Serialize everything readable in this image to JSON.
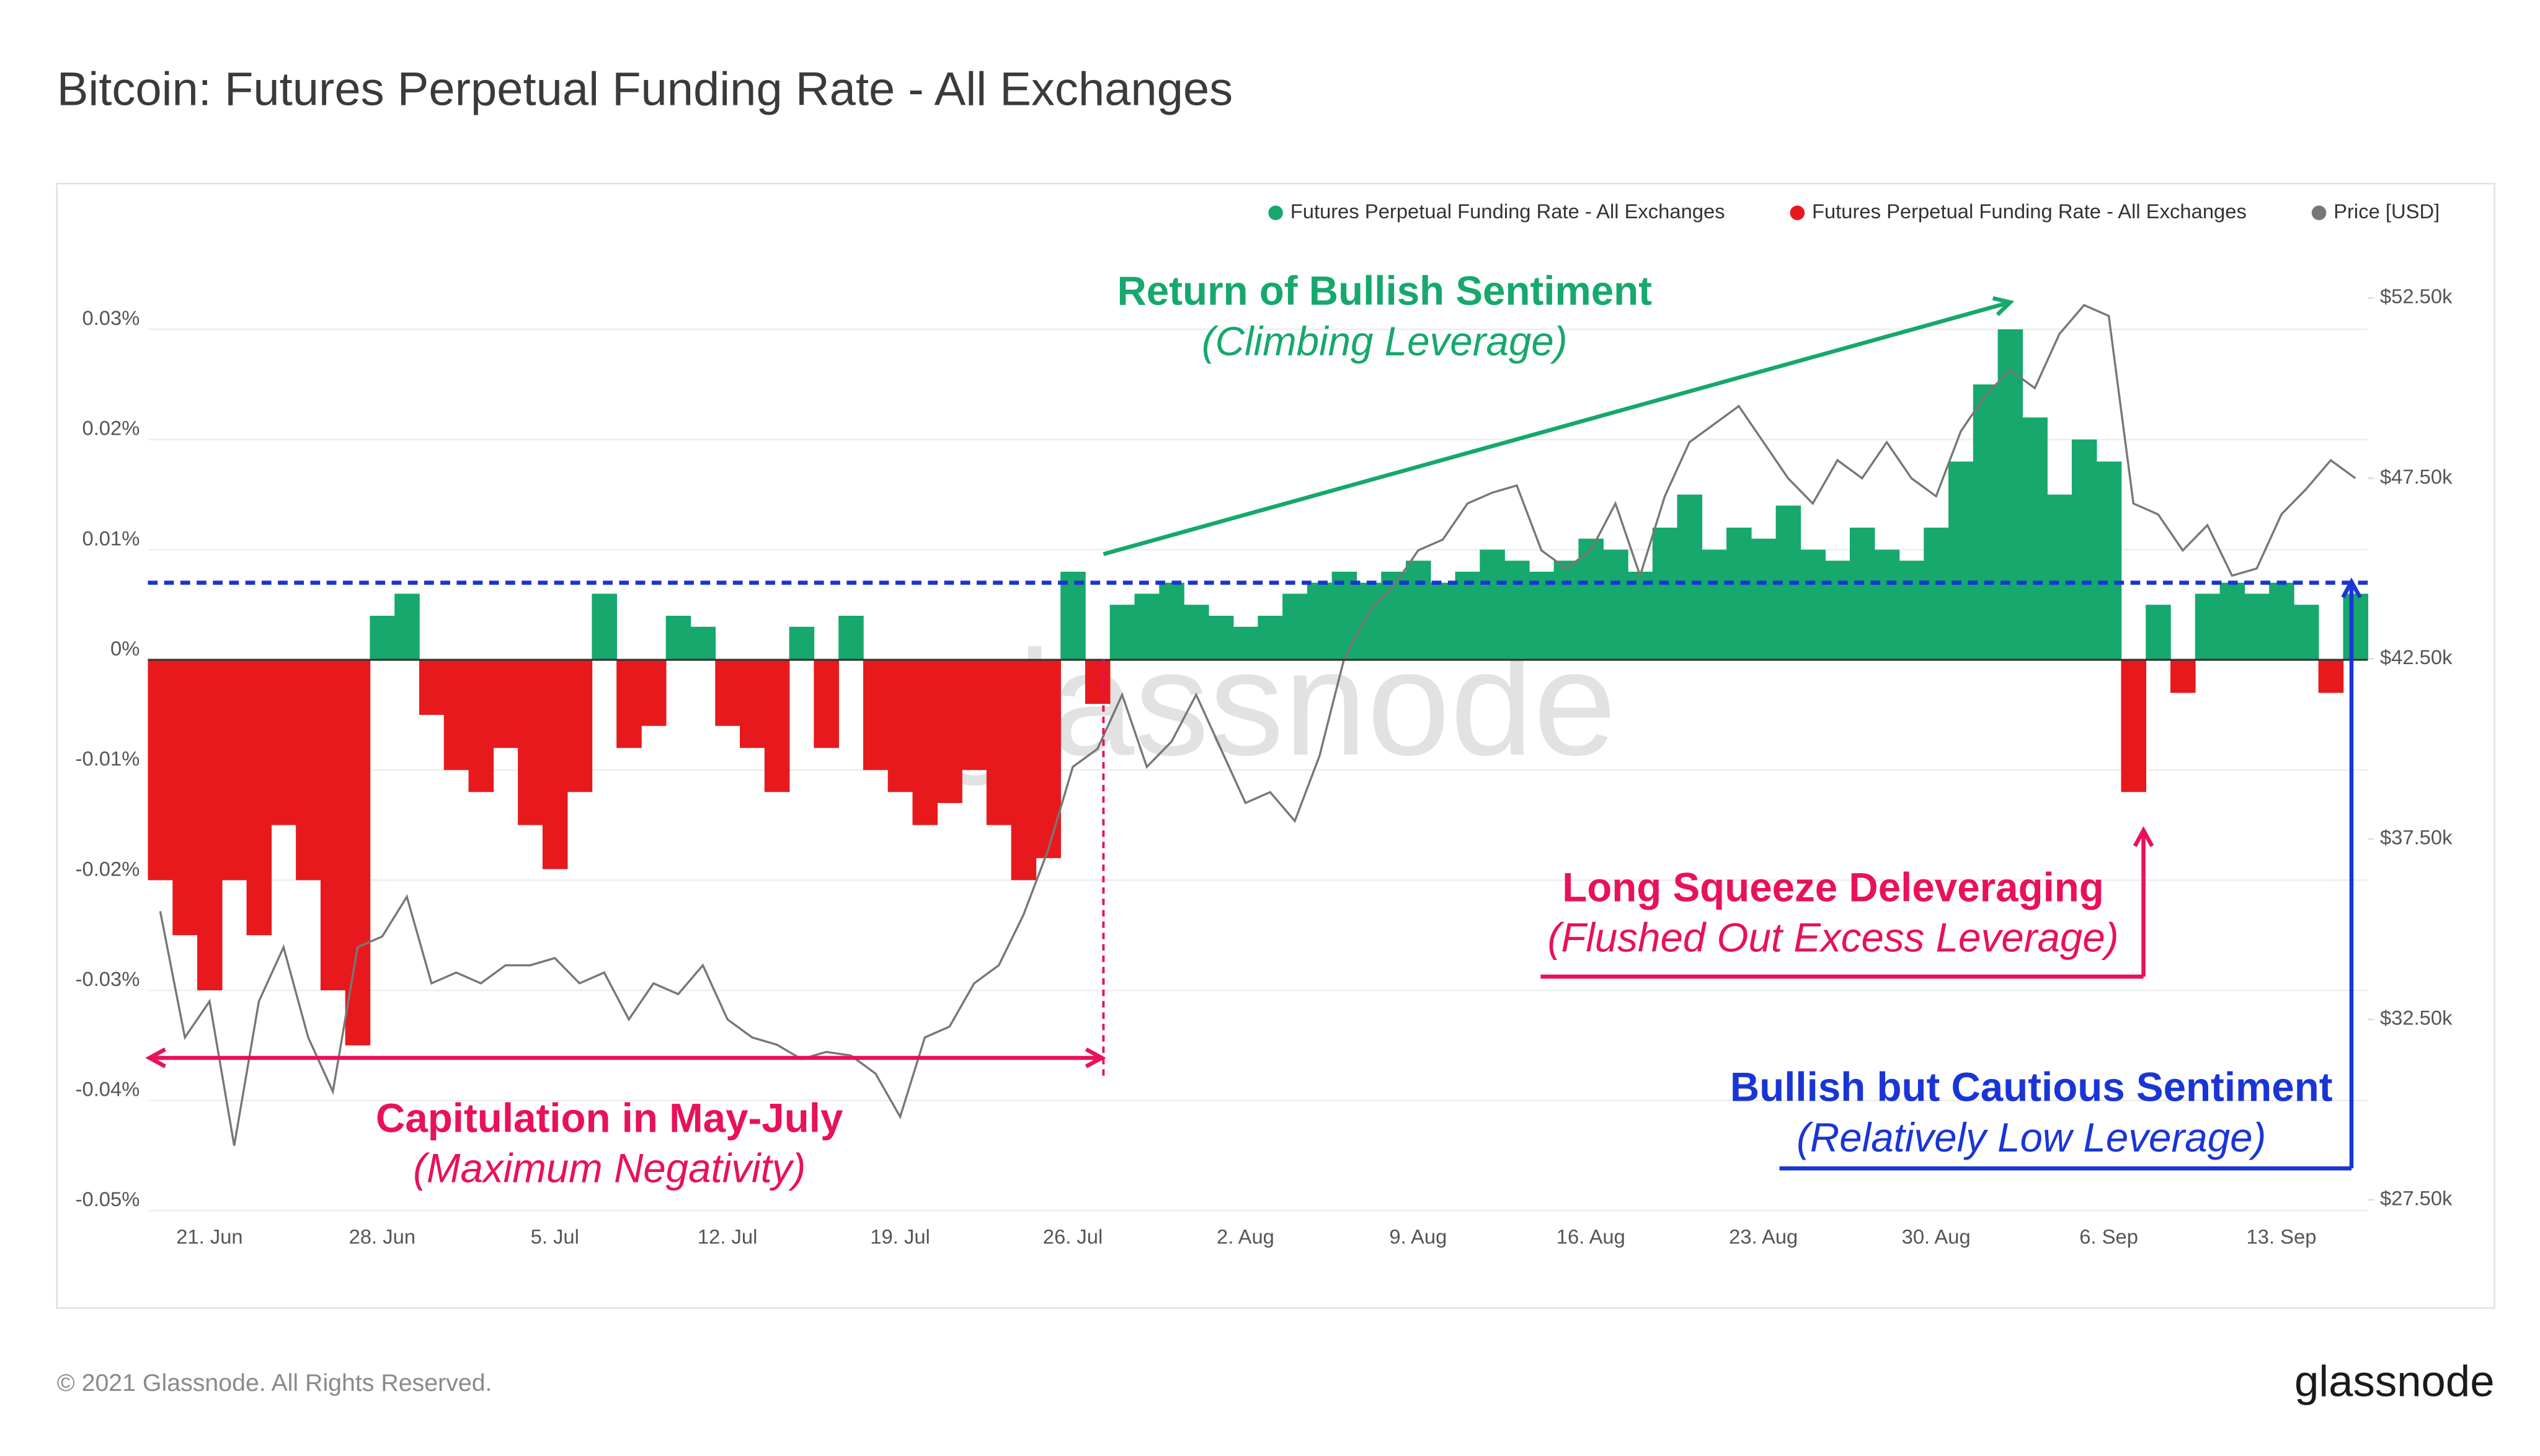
{
  "chart_data": {
    "type": "bar",
    "title": "Bitcoin: Futures Perpetual Funding Rate - All Exchanges",
    "categories": [
      null,
      null,
      "21. Jun",
      null,
      null,
      null,
      null,
      null,
      null,
      "28. Jun",
      null,
      null,
      null,
      null,
      null,
      null,
      "5. Jul",
      null,
      null,
      null,
      null,
      null,
      null,
      "12. Jul",
      null,
      null,
      null,
      null,
      null,
      null,
      "19. Jul",
      null,
      null,
      null,
      null,
      null,
      null,
      "26. Jul",
      null,
      null,
      null,
      null,
      null,
      null,
      "2. Aug",
      null,
      null,
      null,
      null,
      null,
      null,
      "9. Aug",
      null,
      null,
      null,
      null,
      null,
      null,
      "16. Aug",
      null,
      null,
      null,
      null,
      null,
      null,
      "23. Aug",
      null,
      null,
      null,
      null,
      null,
      null,
      "30. Aug",
      null,
      null,
      null,
      null,
      null,
      null,
      "6. Sep",
      null,
      null,
      null,
      null,
      null,
      null,
      "13. Sep",
      null,
      null,
      null
    ],
    "series": [
      {
        "name": "Futures Perpetual Funding Rate - All Exchanges",
        "color": "#16a86c",
        "values": [
          null,
          null,
          null,
          null,
          null,
          null,
          null,
          null,
          null,
          0.004,
          0.006,
          null,
          null,
          null,
          null,
          null,
          null,
          null,
          0.006,
          null,
          null,
          0.004,
          0.003,
          null,
          null,
          null,
          0.003,
          null,
          0.004,
          null,
          null,
          null,
          null,
          null,
          null,
          null,
          null,
          0.008,
          null,
          0.005,
          0.006,
          0.007,
          0.005,
          0.004,
          0.003,
          0.004,
          0.006,
          0.007,
          0.008,
          0.007,
          0.008,
          0.009,
          0.007,
          0.008,
          0.01,
          0.009,
          0.008,
          0.009,
          0.011,
          0.01,
          0.008,
          0.012,
          0.015,
          0.01,
          0.012,
          0.011,
          0.014,
          0.01,
          0.009,
          0.012,
          0.01,
          0.009,
          0.012,
          0.018,
          0.025,
          0.03,
          0.022,
          0.015,
          0.02,
          0.018,
          null,
          0.005,
          null,
          0.006,
          0.007,
          0.006,
          0.007,
          0.005,
          null,
          0.006
        ]
      },
      {
        "name": "Futures Perpetual Funding Rate - All Exchanges",
        "color": "#e8191c",
        "values": [
          -0.02,
          -0.025,
          -0.03,
          -0.02,
          -0.025,
          -0.015,
          -0.02,
          -0.03,
          -0.035,
          null,
          null,
          -0.005,
          -0.01,
          -0.012,
          -0.008,
          -0.015,
          -0.019,
          -0.012,
          null,
          -0.008,
          -0.006,
          null,
          null,
          -0.006,
          -0.008,
          -0.012,
          null,
          -0.008,
          null,
          -0.01,
          -0.012,
          -0.015,
          -0.013,
          -0.01,
          -0.015,
          -0.02,
          -0.018,
          null,
          -0.004,
          null,
          null,
          null,
          null,
          null,
          null,
          null,
          null,
          null,
          null,
          null,
          null,
          null,
          null,
          null,
          null,
          null,
          null,
          null,
          null,
          null,
          null,
          null,
          null,
          null,
          null,
          null,
          null,
          null,
          null,
          null,
          null,
          null,
          null,
          null,
          null,
          null,
          null,
          null,
          null,
          null,
          -0.012,
          null,
          -0.003,
          null,
          null,
          null,
          null,
          null,
          -0.003,
          null
        ]
      },
      {
        "name": "Price [USD]",
        "color": "#777777",
        "axis": "y2",
        "type": "line",
        "values": [
          35500,
          32000,
          33000,
          29000,
          33000,
          34500,
          32000,
          30500,
          34500,
          34800,
          35900,
          33500,
          33800,
          33500,
          34000,
          34000,
          34200,
          33500,
          33800,
          32500,
          33500,
          33200,
          34000,
          32500,
          32000,
          31800,
          31400,
          31600,
          31500,
          31000,
          29800,
          32000,
          32300,
          33500,
          34000,
          35400,
          37200,
          39500,
          40000,
          41500,
          39500,
          40200,
          41500,
          40000,
          38500,
          38800,
          38000,
          39800,
          42500,
          43800,
          44500,
          45500,
          45800,
          46800,
          47100,
          47300,
          45500,
          45000,
          45500,
          46800,
          44800,
          47000,
          48500,
          49000,
          49500,
          48500,
          47500,
          46800,
          48000,
          47500,
          48500,
          47500,
          47000,
          48800,
          49800,
          50500,
          50000,
          51500,
          52300,
          52000,
          46800,
          46500,
          45500,
          46200,
          44800,
          45000,
          46500,
          47200,
          48000,
          47500
        ]
      }
    ],
    "ylim": [
      -0.05,
      0.036
    ],
    "yticks": [
      {
        "value": -0.05,
        "label": "-0.05%"
      },
      {
        "value": -0.04,
        "label": "-0.04%"
      },
      {
        "value": -0.03,
        "label": "-0.03%"
      },
      {
        "value": -0.02,
        "label": "-0.02%"
      },
      {
        "value": -0.01,
        "label": "-0.01%"
      },
      {
        "value": 0,
        "label": "0%"
      },
      {
        "value": 0.01,
        "label": "0.01%"
      },
      {
        "value": 0.02,
        "label": "0.02%"
      },
      {
        "value": 0.03,
        "label": "0.03%"
      }
    ],
    "y2lim": [
      27200,
      53460
    ],
    "y2ticks": [
      {
        "value": 27500,
        "label": "$27.50k"
      },
      {
        "value": 32500,
        "label": "$32.50k"
      },
      {
        "value": 37500,
        "label": "$37.50k"
      },
      {
        "value": 42500,
        "label": "$42.50k"
      },
      {
        "value": 47500,
        "label": "$47.50k"
      },
      {
        "value": 52500,
        "label": "$52.50k"
      }
    ],
    "grid": true,
    "legend": "top-right",
    "reference_line": {
      "value": 0.007,
      "color": "#1a35d6"
    },
    "watermark": "glassnode",
    "annotations": [
      {
        "text": "Return of Bullish Sentiment",
        "subtext": "(Climbing Leverage)",
        "color": "#16a86c"
      },
      {
        "text": "Capitulation in May-July",
        "subtext": "(Maximum Negativity)",
        "color": "#e8115a"
      },
      {
        "text": "Long Squeeze Deleveraging",
        "subtext": "(Flushed Out Excess Leverage)",
        "color": "#e8115a"
      },
      {
        "text": "Bullish but Cautious Sentiment",
        "subtext": "(Relatively Low Leverage)",
        "color": "#1a35d6"
      }
    ]
  },
  "footer": {
    "copyright": "© 2021 Glassnode. All Rights Reserved.",
    "logo": "glassnode"
  }
}
